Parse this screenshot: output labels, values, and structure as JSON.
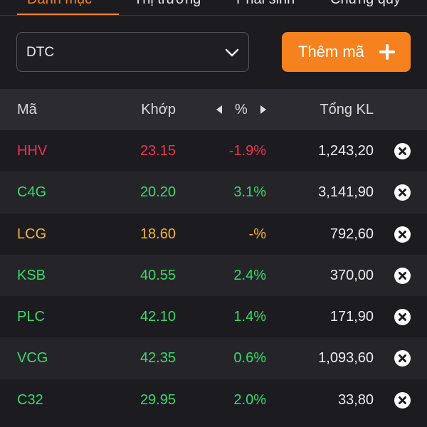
{
  "tabs": [
    {
      "label": "Danh mục",
      "active": true
    },
    {
      "label": "Thị trường",
      "active": false
    },
    {
      "label": "Phái sinh",
      "active": false
    },
    {
      "label": "Chứng quỹ",
      "active": false
    }
  ],
  "toolbar": {
    "select_value": "DTC",
    "add_label": "Thêm mã"
  },
  "header": {
    "symbol": "Mã",
    "price": "Khớp",
    "percent": "%",
    "volume": "Tổng KL"
  },
  "colors": {
    "accent": "#f5821f",
    "up": "#38d96b",
    "down": "#f2304f",
    "ref": "#f5b335"
  },
  "rows": [
    {
      "symbol": "HHV",
      "price": "23.15",
      "pct": "-1.9%",
      "volume": "1,243,20",
      "status": "down"
    },
    {
      "symbol": "C4G",
      "price": "20.20",
      "pct": "3.1%",
      "volume": "3,141,90",
      "status": "up"
    },
    {
      "symbol": "LCG",
      "price": "18.60",
      "pct": "-%",
      "volume": "792,60",
      "status": "ref"
    },
    {
      "symbol": "KSB",
      "price": "40.55",
      "pct": "2.4%",
      "volume": "370,00",
      "status": "up"
    },
    {
      "symbol": "PLC",
      "price": "42.10",
      "pct": "1.4%",
      "volume": "171,90",
      "status": "up"
    },
    {
      "symbol": "VCG",
      "price": "42.35",
      "pct": "0.6%",
      "volume": "1,093,60",
      "status": "up"
    },
    {
      "symbol": "C32",
      "price": "29.95",
      "pct": "2.0%",
      "volume": "33,80",
      "status": "up"
    }
  ]
}
